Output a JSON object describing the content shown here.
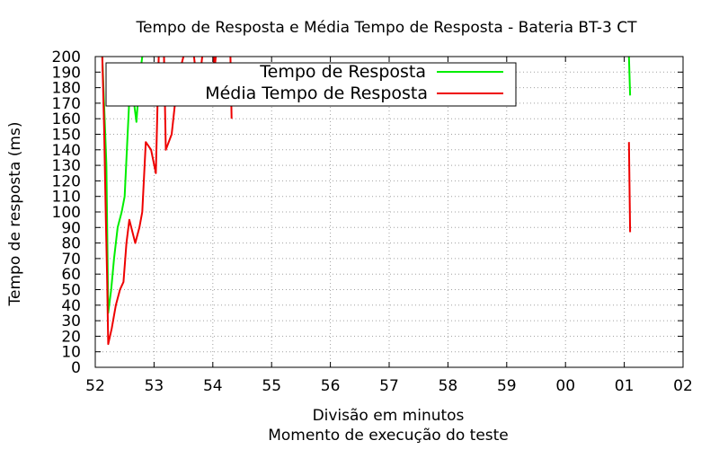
{
  "chart_data": {
    "type": "line",
    "title": "Tempo de Resposta e Média Tempo de Resposta - Bateria BT-3 CT",
    "xlabel": "Divisão em minutos",
    "xlabel2": "Momento de execução do teste",
    "ylabel": "Tempo de resposta (ms)",
    "ylim": [
      0,
      200
    ],
    "y_ticks": [
      0,
      10,
      20,
      30,
      40,
      50,
      60,
      70,
      80,
      90,
      100,
      110,
      120,
      130,
      140,
      150,
      160,
      170,
      180,
      190,
      200
    ],
    "x_ticks": [
      "52",
      "53",
      "54",
      "55",
      "56",
      "57",
      "58",
      "59",
      "00",
      "01",
      "02"
    ],
    "x_range_minutes": [
      52,
      62
    ],
    "grid": true,
    "legend_position": "top",
    "series": [
      {
        "name": "Tempo de Resposta",
        "color": "#00ee00",
        "segments": [
          [
            [
              52.12,
              200
            ],
            [
              52.15,
              170
            ],
            [
              52.19,
              130
            ],
            [
              52.22,
              35
            ],
            [
              52.27,
              50
            ],
            [
              52.32,
              70
            ],
            [
              52.38,
              90
            ],
            [
              52.45,
              100
            ],
            [
              52.5,
              110
            ],
            [
              52.55,
              150
            ],
            [
              52.6,
              188
            ],
            [
              52.7,
              158
            ],
            [
              52.75,
              185
            ],
            [
              52.8,
              200
            ]
          ],
          [
            [
              61.08,
              200
            ],
            [
              61.1,
              175
            ]
          ]
        ]
      },
      {
        "name": "Média Tempo de Resposta",
        "color": "#ee0000",
        "segments": [
          [
            [
              52.12,
              200
            ],
            [
              52.13,
              185
            ],
            [
              52.15,
              155
            ],
            [
              52.18,
              95
            ],
            [
              52.2,
              60
            ],
            [
              52.22,
              15
            ],
            [
              52.28,
              25
            ],
            [
              52.35,
              40
            ],
            [
              52.42,
              50
            ],
            [
              52.48,
              55
            ],
            [
              52.53,
              80
            ],
            [
              52.58,
              95
            ],
            [
              52.68,
              80
            ],
            [
              52.75,
              90
            ],
            [
              52.8,
              100
            ],
            [
              52.86,
              145
            ],
            [
              52.95,
              140
            ],
            [
              53.03,
              125
            ],
            [
              53.08,
              200
            ]
          ],
          [
            [
              53.17,
              200
            ],
            [
              53.2,
              140
            ],
            [
              53.3,
              150
            ],
            [
              53.4,
              185
            ],
            [
              53.5,
              200
            ]
          ],
          [
            [
              53.68,
              200
            ],
            [
              53.75,
              175
            ],
            [
              53.82,
              200
            ]
          ],
          [
            [
              54.02,
              200
            ],
            [
              54.0,
              180
            ],
            [
              54.05,
              200
            ]
          ],
          [
            [
              54.3,
              200
            ],
            [
              54.32,
              160
            ]
          ],
          [
            [
              61.08,
              145
            ],
            [
              61.1,
              87
            ]
          ]
        ]
      }
    ]
  }
}
